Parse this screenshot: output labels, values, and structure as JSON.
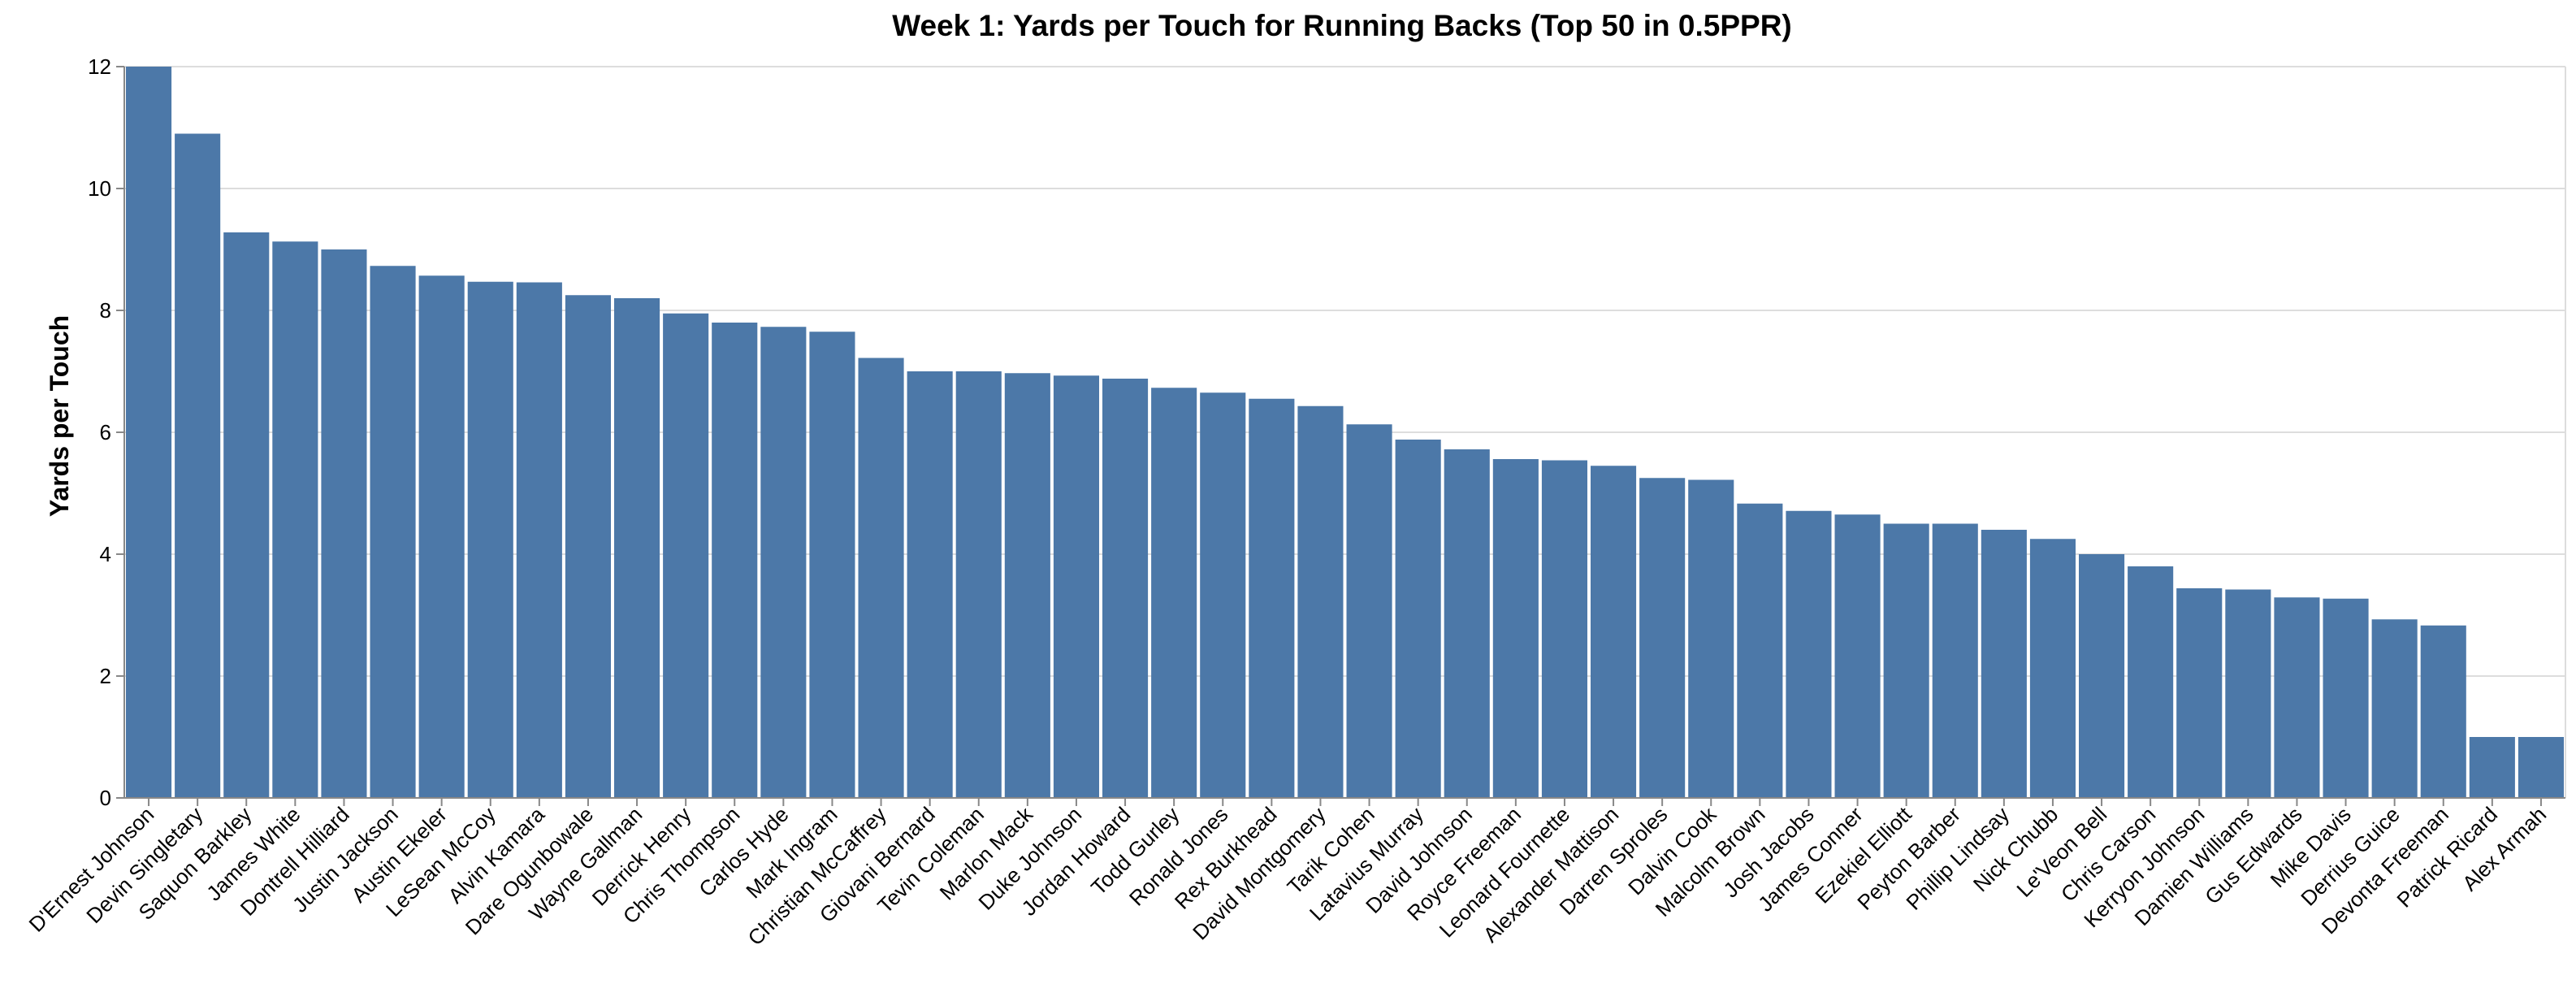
{
  "chart_data": {
    "type": "bar",
    "title": "Week 1: Yards per Touch for Running Backs (Top 50 in 0.5PPR)",
    "xlabel": "",
    "ylabel": "Yards per Touch",
    "ylim": [
      0,
      12
    ],
    "yticks": [
      "0",
      "2",
      "4",
      "6",
      "8",
      "10",
      "12"
    ],
    "grid": true,
    "bar_color": "#4c78a8",
    "categories": [
      "D'Ernest Johnson",
      "Devin Singletary",
      "Saquon Barkley",
      "James White",
      "Dontrell Hilliard",
      "Justin Jackson",
      "Austin Ekeler",
      "LeSean McCoy",
      "Alvin Kamara",
      "Dare Ogunbowale",
      "Wayne Gallman",
      "Derrick Henry",
      "Chris Thompson",
      "Carlos Hyde",
      "Mark Ingram",
      "Christian McCaffrey",
      "Giovani Bernard",
      "Tevin Coleman",
      "Marlon Mack",
      "Duke Johnson",
      "Jordan Howard",
      "Todd Gurley",
      "Ronald Jones",
      "Rex Burkhead",
      "David Montgomery",
      "Tarik Cohen",
      "Latavius Murray",
      "David Johnson",
      "Royce Freeman",
      "Leonard Fournette",
      "Alexander Mattison",
      "Darren Sproles",
      "Dalvin Cook",
      "Malcolm Brown",
      "Josh Jacobs",
      "James Conner",
      "Ezekiel Elliott",
      "Peyton Barber",
      "Phillip Lindsay",
      "Nick Chubb",
      "Le'Veon Bell",
      "Chris Carson",
      "Kerryon Johnson",
      "Damien Williams",
      "Gus Edwards",
      "Mike Davis",
      "Derrius Guice",
      "Devonta Freeman",
      "Patrick Ricard",
      "Alex Armah"
    ],
    "values": [
      12.0,
      10.9,
      9.28,
      9.13,
      9.0,
      8.73,
      8.57,
      8.47,
      8.46,
      8.25,
      8.2,
      7.95,
      7.8,
      7.73,
      7.65,
      7.22,
      7.0,
      7.0,
      6.97,
      6.93,
      6.88,
      6.73,
      6.65,
      6.55,
      6.43,
      6.13,
      5.88,
      5.72,
      5.56,
      5.54,
      5.45,
      5.25,
      5.22,
      4.83,
      4.71,
      4.65,
      4.5,
      4.5,
      4.4,
      4.25,
      4.0,
      3.8,
      3.44,
      3.42,
      3.29,
      3.27,
      2.93,
      2.83,
      1.0,
      1.0
    ]
  }
}
